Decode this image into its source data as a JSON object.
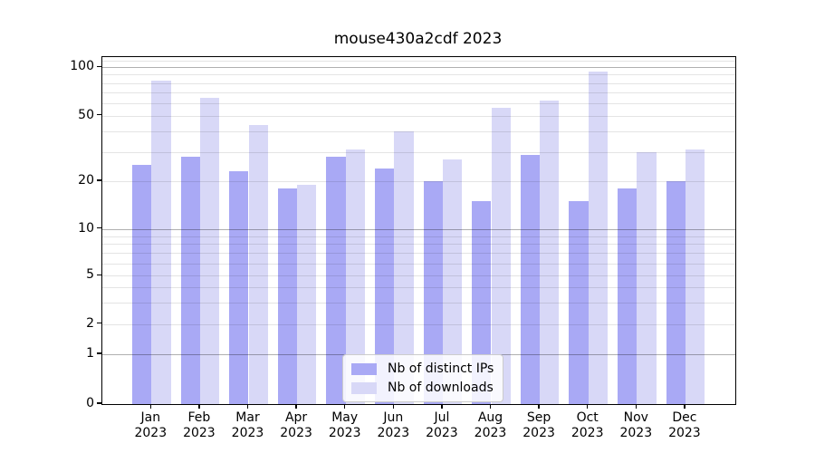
{
  "chart_data": {
    "type": "bar",
    "title": "mouse430a2cdf 2023",
    "categories": [
      "Jan",
      "Feb",
      "Mar",
      "Apr",
      "May",
      "Jun",
      "Jul",
      "Aug",
      "Sep",
      "Oct",
      "Nov",
      "Dec"
    ],
    "category_year": "2023",
    "series": [
      {
        "name": "Nb of distinct IPs",
        "color": "#a9a9f5",
        "values": [
          25,
          28,
          23,
          18,
          28,
          24,
          20,
          15,
          29,
          15,
          18,
          20
        ]
      },
      {
        "name": "Nb of downloads",
        "color": "#d8d8f7",
        "values": [
          83,
          65,
          44,
          19,
          31,
          40,
          27,
          56,
          62,
          94,
          30,
          31
        ]
      }
    ],
    "xlabel": "",
    "ylabel": "",
    "yscale": "symlog",
    "ylim": [
      0,
      116
    ],
    "yticks": [
      0,
      1,
      2,
      5,
      10,
      20,
      50,
      100
    ],
    "grid": "both",
    "grid_major_values": [
      1,
      10,
      100
    ],
    "grid_minor_values": [
      2,
      3,
      4,
      5,
      6,
      7,
      8,
      9,
      20,
      30,
      40,
      50,
      60,
      70,
      80,
      90,
      110
    ],
    "legend_position": "lower center"
  },
  "legend": {
    "items": [
      {
        "label": "Nb of distinct IPs"
      },
      {
        "label": "Nb of downloads"
      }
    ]
  },
  "colors": {
    "background": "#ffffff",
    "grid_major": "#b0b0b0",
    "grid_minor": "#e4e4e4",
    "spine": "#000000",
    "text": "#000000"
  }
}
